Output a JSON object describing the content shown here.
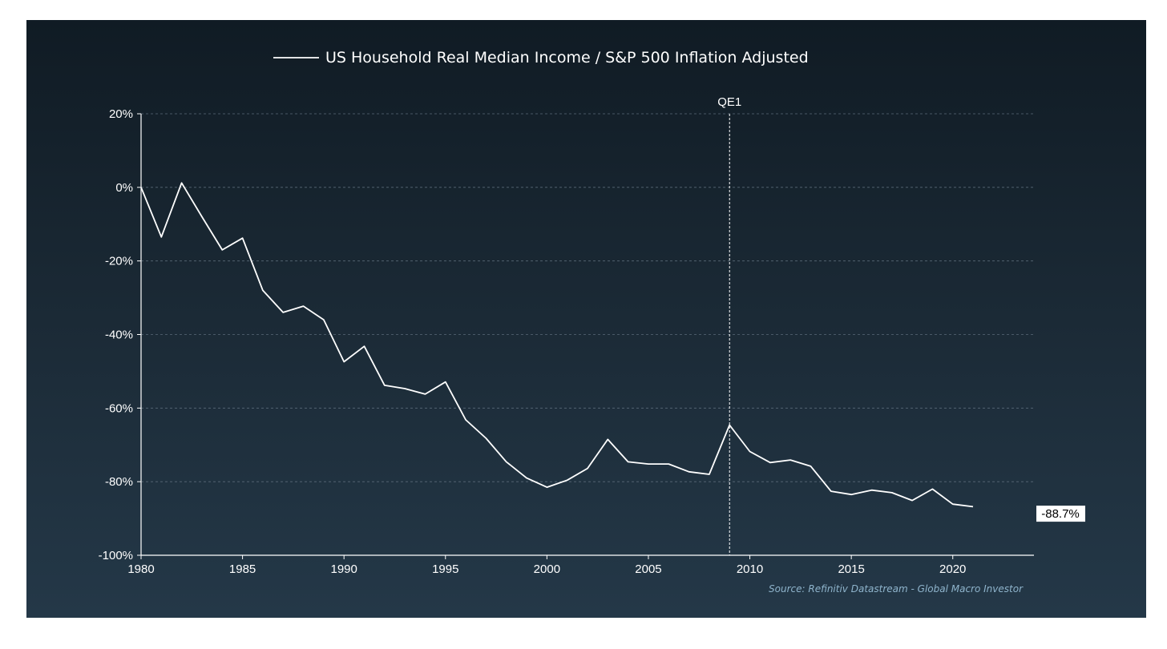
{
  "chart_data": {
    "type": "line",
    "series": [
      {
        "name": "US Household Real Median Income / S&P 500 Inflation Adjusted",
        "color": "#ffffff",
        "x": [
          1980,
          1981,
          1982,
          1983,
          1984,
          1985,
          1986,
          1987,
          1988,
          1989,
          1990,
          1991,
          1992,
          1993,
          1994,
          1995,
          1996,
          1997,
          1998,
          1999,
          2000,
          2001,
          2002,
          2003,
          2004,
          2005,
          2006,
          2007,
          2008,
          2009,
          2010,
          2011,
          2012,
          2013,
          2014,
          2015,
          2016,
          2017,
          2018,
          2019,
          2020,
          2021
        ],
        "values": [
          0,
          -13.5,
          1.2,
          -8,
          -17,
          -13.8,
          -28,
          -34,
          -32.3,
          -36,
          -47.4,
          -43.2,
          -53.8,
          -54.7,
          -56.2,
          -52.9,
          -63.2,
          -68.2,
          -74.6,
          -79,
          -81.5,
          -79.6,
          -76.4,
          -68.5,
          -74.6,
          -75.2,
          -75.2,
          -77.3,
          -78,
          -64.6,
          -71.8,
          -74.8,
          -74.1,
          -75.8,
          -82.6,
          -83.5,
          -82.3,
          -83,
          -85.1,
          -82,
          -86.1,
          -86.8
        ]
      }
    ],
    "xlim": [
      1980,
      2024
    ],
    "ylim": [
      -100,
      20
    ],
    "x_ticks": [
      {
        "value": 1980,
        "label": "1980"
      },
      {
        "value": 1985,
        "label": "1985"
      },
      {
        "value": 1990,
        "label": "1990"
      },
      {
        "value": 1995,
        "label": "1995"
      },
      {
        "value": 2000,
        "label": "2000"
      },
      {
        "value": 2005,
        "label": "2005"
      },
      {
        "value": 2010,
        "label": "2010"
      },
      {
        "value": 2015,
        "label": "2015"
      },
      {
        "value": 2020,
        "label": "2020"
      }
    ],
    "y_ticks": [
      {
        "value": 20,
        "label": "20%"
      },
      {
        "value": 0,
        "label": "0%"
      },
      {
        "value": -20,
        "label": "-20%"
      },
      {
        "value": -40,
        "label": "-40%"
      },
      {
        "value": -60,
        "label": "-60%"
      },
      {
        "value": -80,
        "label": "-80%"
      },
      {
        "value": -100,
        "label": "-100%"
      }
    ],
    "grid": true,
    "legend_position": "top-left",
    "annotations": {
      "vertical_line": {
        "x": 2009,
        "label": "QE1"
      },
      "end_label": {
        "value": -88.7,
        "text": "-88.7%"
      }
    },
    "source": "Source: Refinitiv Datastream - Global Macro Investor",
    "colors": {
      "line": "#ffffff",
      "grid": "#5a6a78",
      "source": "#8fb4cc",
      "background_top": "#101b24",
      "background_bottom": "#243848"
    }
  }
}
